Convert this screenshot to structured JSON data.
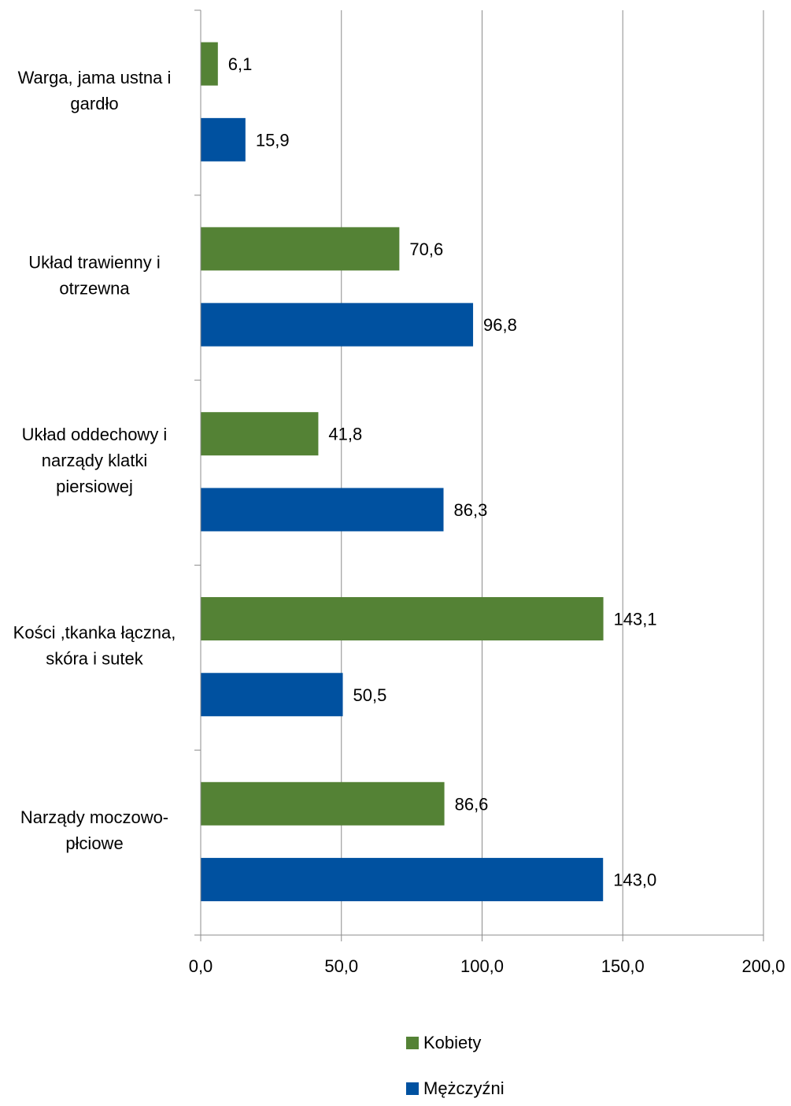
{
  "chart_data": {
    "type": "bar",
    "orientation": "horizontal",
    "categories": [
      [
        "Warga, jama ustna i",
        "gardło"
      ],
      [
        "Układ trawienny i",
        "otrzewna"
      ],
      [
        "Układ oddechowy i",
        "narządy klatki",
        "piersiowej"
      ],
      [
        "Kości ,tkanka łączna,",
        "skóra i sutek"
      ],
      [
        "Narządy moczowo-",
        "płciowe"
      ]
    ],
    "series": [
      {
        "name": "Kobiety",
        "color": "#548235",
        "values": [
          6.1,
          70.6,
          41.8,
          143.1,
          86.6
        ],
        "labels": [
          "6,1",
          "70,6",
          "41,8",
          "143,1",
          "86,6"
        ]
      },
      {
        "name": "Mężczyźni",
        "color": "#0051A0",
        "values": [
          15.9,
          96.8,
          86.3,
          50.5,
          143.0
        ],
        "labels": [
          "15,9",
          "96,8",
          "86,3",
          "50,5",
          "143,0"
        ]
      }
    ],
    "xlim": [
      0,
      200
    ],
    "xticks": [
      0,
      50,
      100,
      150,
      200
    ],
    "xtick_labels": [
      "0,0",
      "50,0",
      "100,0",
      "150,0",
      "200,0"
    ],
    "grid": "vertical",
    "legend_position": "bottom"
  }
}
